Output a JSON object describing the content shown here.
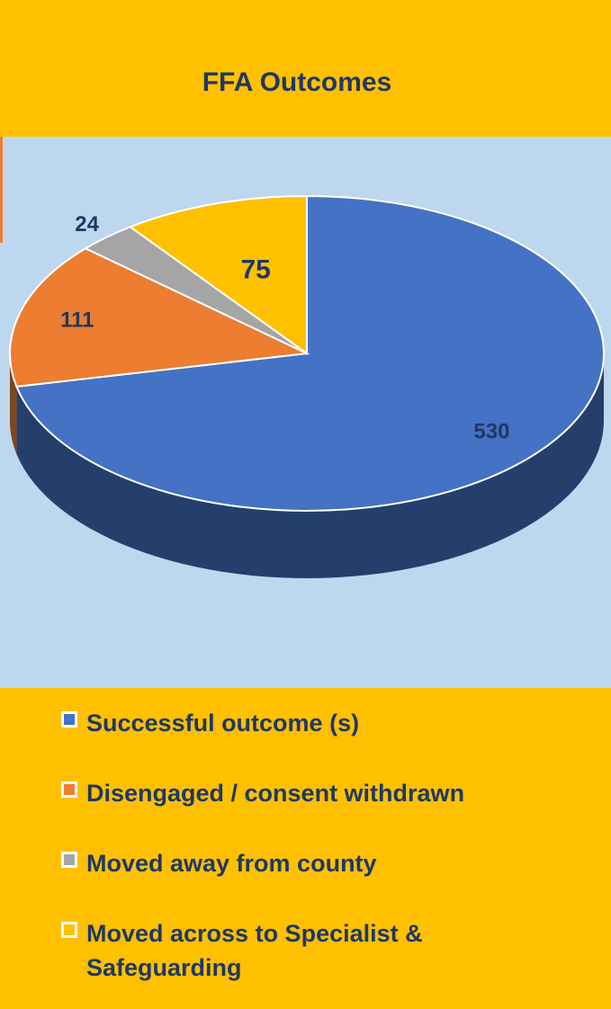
{
  "chart_data": {
    "type": "pie",
    "title": "FFA Outcomes",
    "categories": [
      "Successful outcome (s)",
      "Disengaged / consent withdrawn",
      "Moved away from county",
      "Moved across to Specialist & Safeguarding"
    ],
    "values": [
      530,
      111,
      24,
      75
    ],
    "colors": [
      "#4472c4",
      "#ed7d31",
      "#a5a5a5",
      "#ffc000"
    ],
    "legend": "bottom"
  }
}
